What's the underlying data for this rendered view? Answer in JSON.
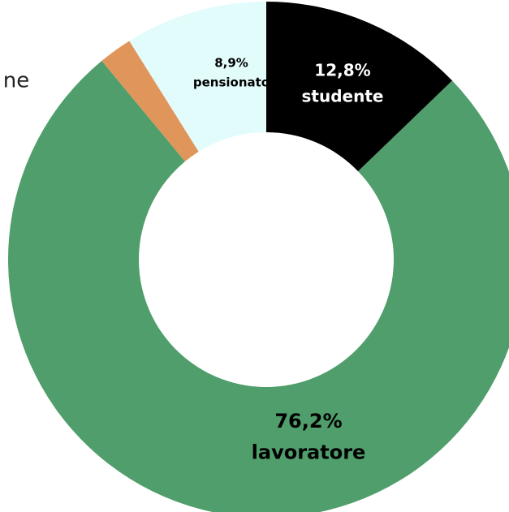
{
  "chart_data": {
    "type": "donut",
    "annotation": "ne",
    "categories": [
      "studente",
      "lavoratore",
      null,
      "pensionato"
    ],
    "values": [
      12.8,
      76.2,
      2.1,
      8.9
    ],
    "value_labels": [
      "12,8%",
      "76,2%",
      null,
      "8,9%"
    ],
    "colors": [
      "#000000",
      "#4f9e6b",
      "#e0955a",
      "#e2fbfb"
    ]
  }
}
